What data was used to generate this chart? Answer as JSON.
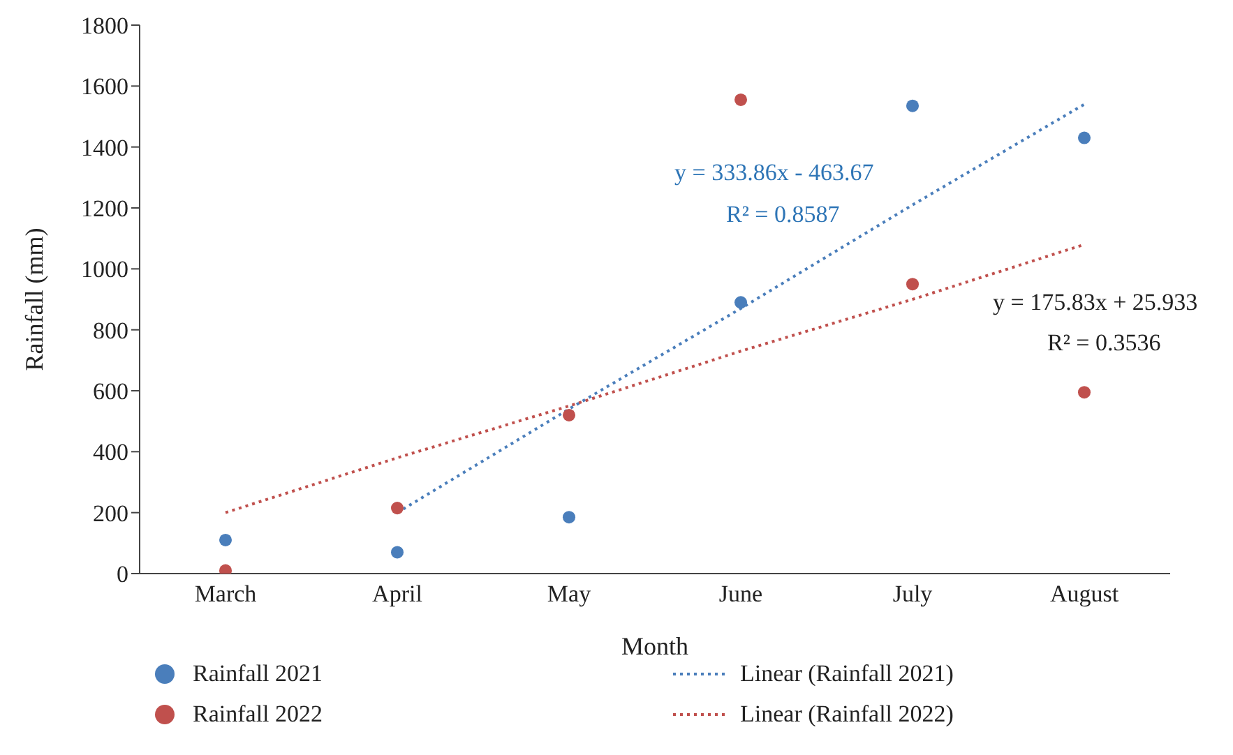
{
  "chart_data": {
    "type": "scatter",
    "xlabel": "Month",
    "ylabel": "Rainfall (mm)",
    "categories": [
      "March",
      "April",
      "May",
      "June",
      "July",
      "August"
    ],
    "series": [
      {
        "name": "Rainfall 2021",
        "color": "#4a7ebb",
        "marker": "circle",
        "values": [
          110,
          70,
          185,
          890,
          1535,
          1430
        ]
      },
      {
        "name": "Rainfall 2022",
        "color": "#c0504d",
        "marker": "circle",
        "values": [
          10,
          215,
          520,
          1555,
          950,
          595
        ]
      },
      {
        "type": "line",
        "name": "Linear (Rainfall 2021)",
        "color": "#4a7ebb",
        "line_style": "dotted",
        "marker": "none",
        "values": [
          null,
          200,
          540,
          870,
          1210,
          1540
        ]
      },
      {
        "type": "line",
        "name": "Linear (Rainfall 2022)",
        "color": "#c0504d",
        "line_style": "dotted",
        "marker": "none",
        "values": [
          200,
          380,
          550,
          730,
          900,
          1080
        ]
      }
    ],
    "annotations": [
      "y = 333.86x - 463.67",
      "R² = 0.8587",
      "y = 175.83x + 25.933",
      "R² = 0.3536"
    ],
    "ylim": [
      0,
      1800
    ],
    "yticks": [
      0,
      200,
      400,
      600,
      800,
      1000,
      1200,
      1400,
      1600,
      1800
    ],
    "legend": "bottom"
  }
}
